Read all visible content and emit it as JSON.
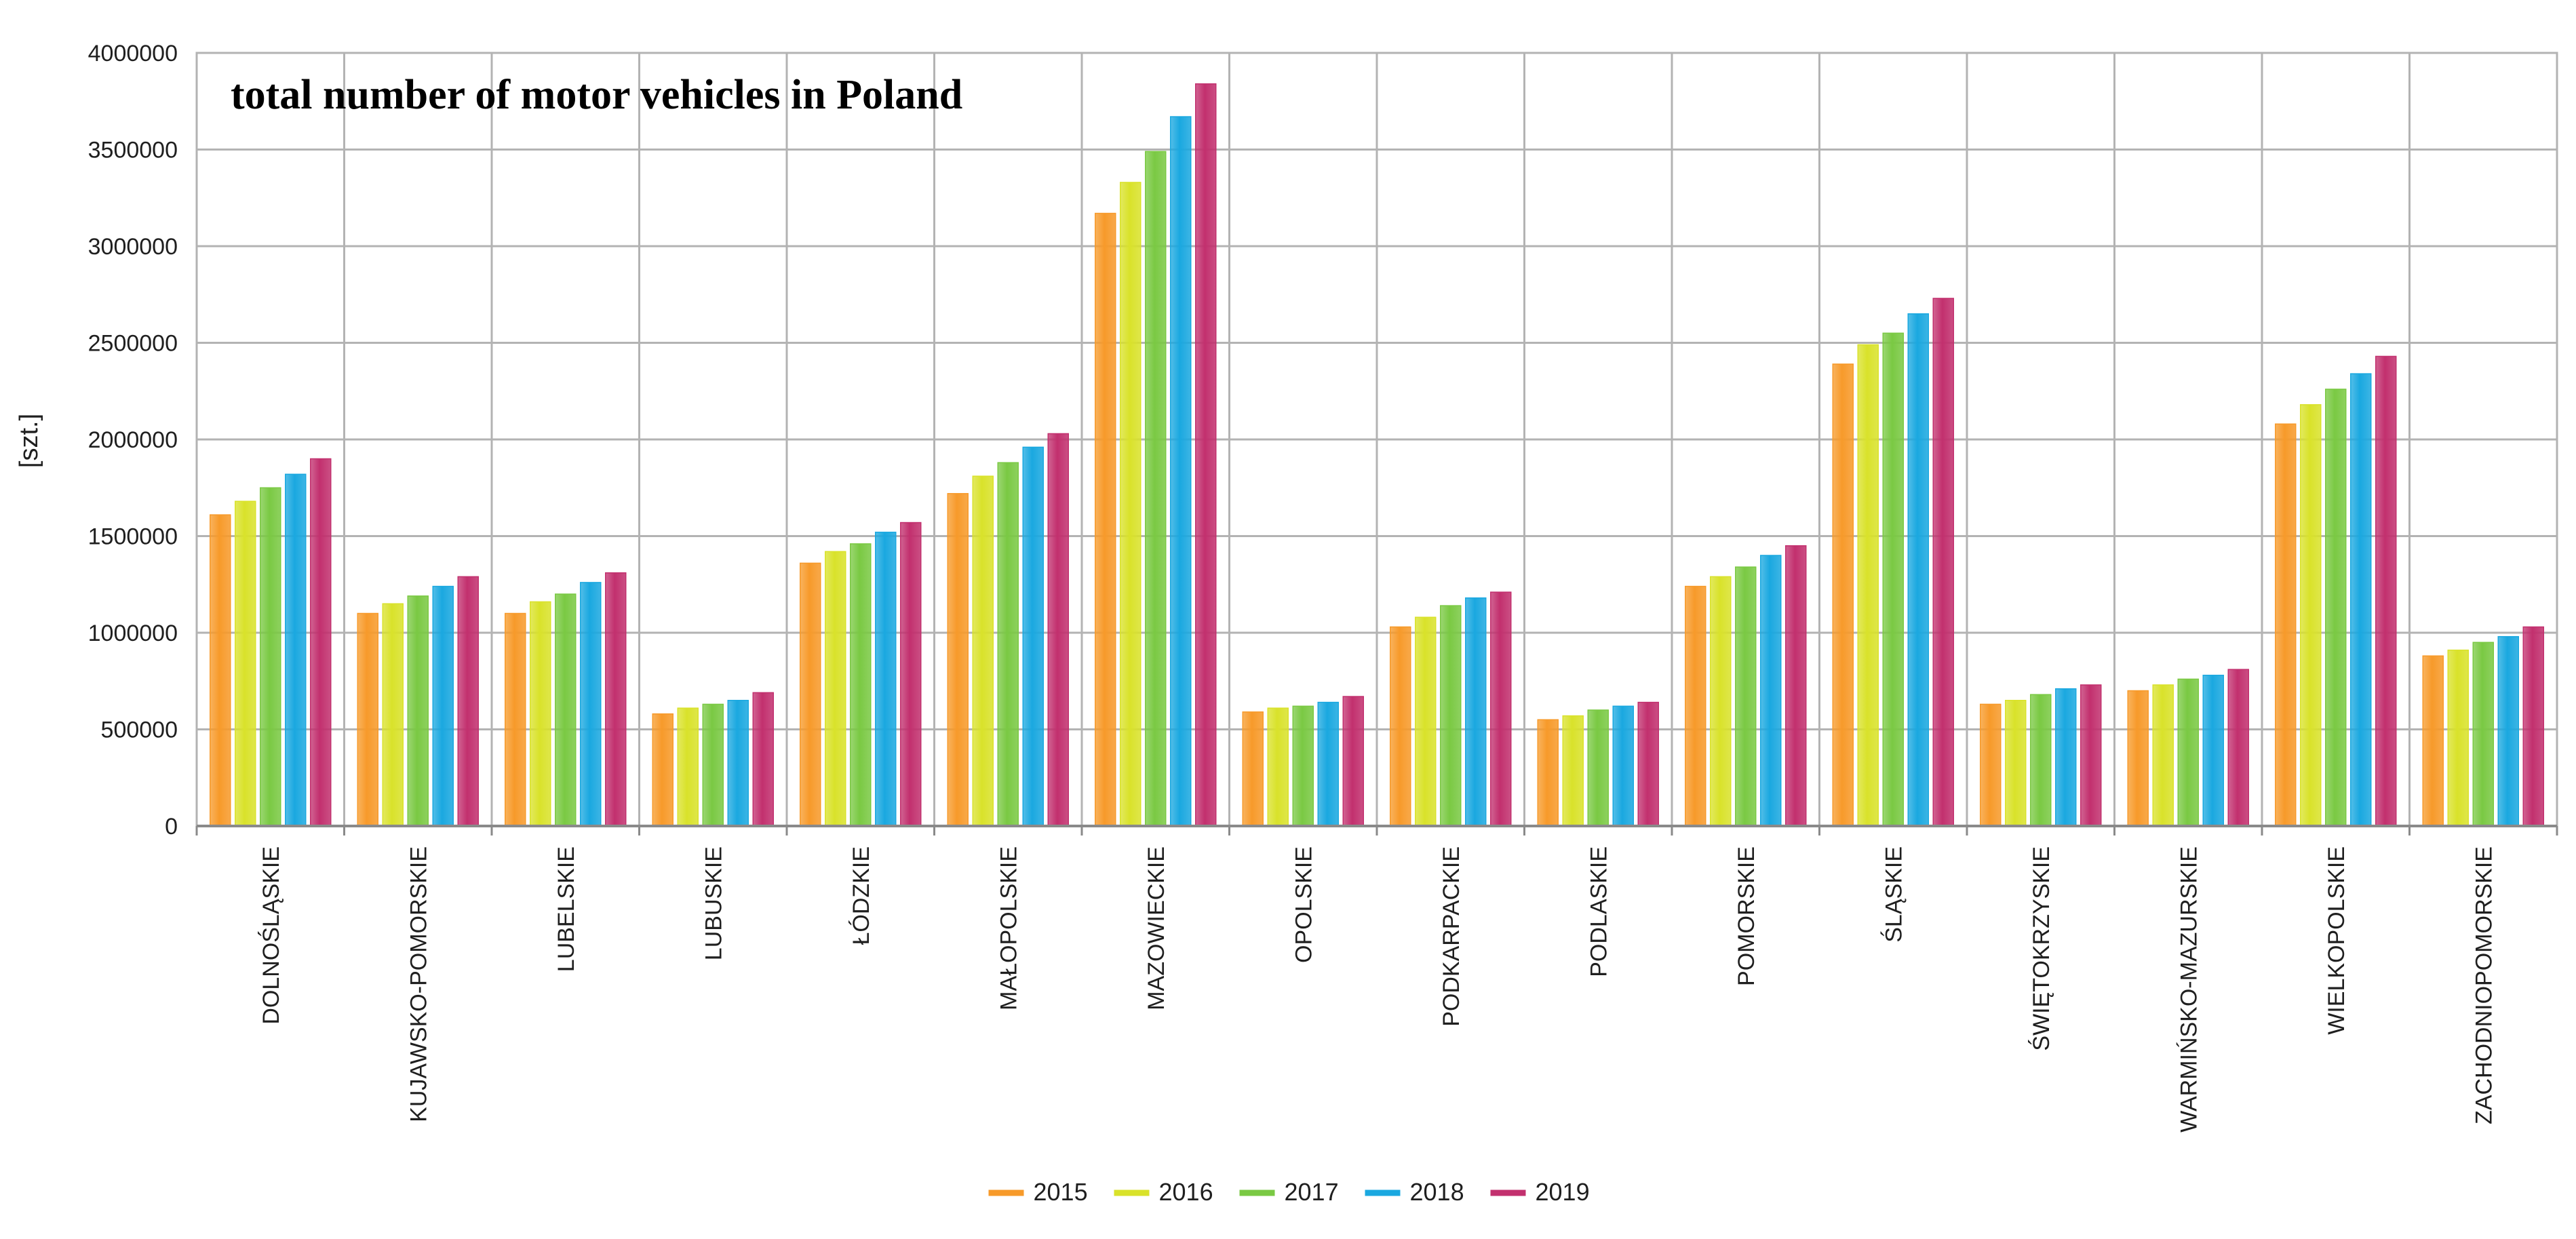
{
  "chart_data": {
    "type": "bar",
    "title": "total number of motor vehicles in Poland",
    "xlabel": "",
    "ylabel": "[szt.]",
    "ylim": [
      0,
      4000000
    ],
    "yticks": [
      0,
      500000,
      1000000,
      1500000,
      2000000,
      2500000,
      3000000,
      3500000,
      4000000
    ],
    "ytick_labels": [
      "0",
      "500000",
      "1000000",
      "1500000",
      "2000000",
      "2500000",
      "3000000",
      "3500000",
      "4000000"
    ],
    "grid": true,
    "legend_position": "bottom-center",
    "categories": [
      "DOLNOŚLĄSKIE",
      "KUJAWSKO-POMORSKIE",
      "LUBELSKIE",
      "LUBUSKIE",
      "ŁÓDZKIE",
      "MAŁOPOLSKIE",
      "MAZOWIECKIE",
      "OPOLSKIE",
      "PODKARPACKIE",
      "PODLASKIE",
      "POMORSKIE",
      "ŚLĄSKIE",
      "ŚWIĘTOKRZYSKIE",
      "WARMIŃSKO-MAZURSKIE",
      "WIELKOPOLSKIE",
      "ZACHODNIOPOMORSKIE"
    ],
    "series": [
      {
        "name": "2015",
        "color": "#f79a2a",
        "values": [
          1610000,
          1100000,
          1100000,
          580000,
          1360000,
          1720000,
          3170000,
          590000,
          1030000,
          550000,
          1240000,
          2390000,
          630000,
          700000,
          2080000,
          880000
        ]
      },
      {
        "name": "2016",
        "color": "#d9e22a",
        "values": [
          1680000,
          1150000,
          1160000,
          610000,
          1420000,
          1810000,
          3330000,
          610000,
          1080000,
          570000,
          1290000,
          2490000,
          650000,
          730000,
          2180000,
          910000
        ]
      },
      {
        "name": "2017",
        "color": "#7ac943",
        "values": [
          1750000,
          1190000,
          1200000,
          630000,
          1460000,
          1880000,
          3490000,
          620000,
          1140000,
          600000,
          1340000,
          2550000,
          680000,
          760000,
          2260000,
          950000
        ]
      },
      {
        "name": "2018",
        "color": "#1aa8e0",
        "values": [
          1820000,
          1240000,
          1260000,
          650000,
          1520000,
          1960000,
          3670000,
          640000,
          1180000,
          620000,
          1400000,
          2650000,
          710000,
          780000,
          2340000,
          980000
        ]
      },
      {
        "name": "2019",
        "color": "#c2306e",
        "values": [
          1900000,
          1290000,
          1310000,
          690000,
          1570000,
          2030000,
          3840000,
          670000,
          1210000,
          640000,
          1450000,
          2730000,
          730000,
          810000,
          2430000,
          1030000
        ]
      }
    ]
  }
}
